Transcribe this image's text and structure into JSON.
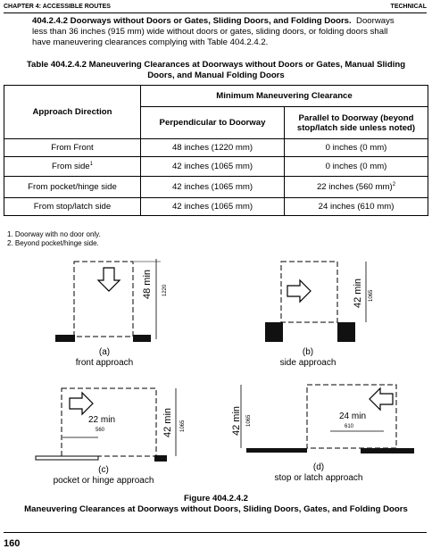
{
  "header": {
    "left": "CHAPTER 4: ACCESSIBLE ROUTES",
    "right": "TECHNICAL"
  },
  "section": {
    "heading": "404.2.4.2 Doorways without Doors or Gates, Sliding Doors, and Folding Doors.",
    "body_1": "Doorways",
    "body_2": "less than 36 inches (915 mm) wide without doors or gates, sliding doors, or folding doors shall",
    "body_3": "have maneuvering clearances complying with Table 404.2.4.2."
  },
  "table": {
    "caption_1": "Table 404.2.4.2 Maneuvering Clearances at Doorways without Doors or Gates, Manual Sliding",
    "caption_2": "Doors, and Manual Folding Doors",
    "group_header": "Minimum Maneuvering Clearance",
    "col_approach": "Approach Direction",
    "col_perp": "Perpendicular to Doorway",
    "col_parallel_1": "Parallel to Doorway (beyond",
    "col_parallel_2": "stop/latch side unless noted)",
    "rows": [
      {
        "approach": "From Front",
        "sup": "",
        "perp": "48 inches (1220 mm)",
        "parallel": "0 inches (0 mm)",
        "psup": ""
      },
      {
        "approach": "From side",
        "sup": "1",
        "perp": "42 inches (1065 mm)",
        "parallel": "0 inches (0 mm)",
        "psup": ""
      },
      {
        "approach": "From pocket/hinge side",
        "sup": "",
        "perp": "42 inches (1065 mm)",
        "parallel": "22 inches (560 mm)",
        "psup": "2"
      },
      {
        "approach": "From stop/latch side",
        "sup": "",
        "perp": "42 inches (1065 mm)",
        "parallel": "24 inches (610 mm)",
        "psup": ""
      }
    ],
    "notes": [
      "1. Doorway with no door only.",
      "2. Beyond pocket/hinge side."
    ]
  },
  "figure": {
    "a": {
      "letter": "(a)",
      "label": "front approach",
      "dim": "48 min",
      "dim_mm": "1220"
    },
    "b": {
      "letter": "(b)",
      "label": "side approach",
      "dim": "42 min",
      "dim_mm": "1065"
    },
    "c": {
      "letter": "(c)",
      "label": "pocket or hinge approach",
      "dim": "42 min",
      "dim_mm": "1065",
      "dim2": "22 min",
      "dim2_mm": "560"
    },
    "d": {
      "letter": "(d)",
      "label": "stop or latch approach",
      "dim": "42 min",
      "dim_mm": "1065",
      "dim2": "24 min",
      "dim2_mm": "610"
    },
    "caption_1": "Figure 404.2.4.2",
    "caption_2": "Maneuvering Clearances at Doorways without Doors, Sliding Doors, Gates, and Folding Doors"
  },
  "page_number": "160"
}
